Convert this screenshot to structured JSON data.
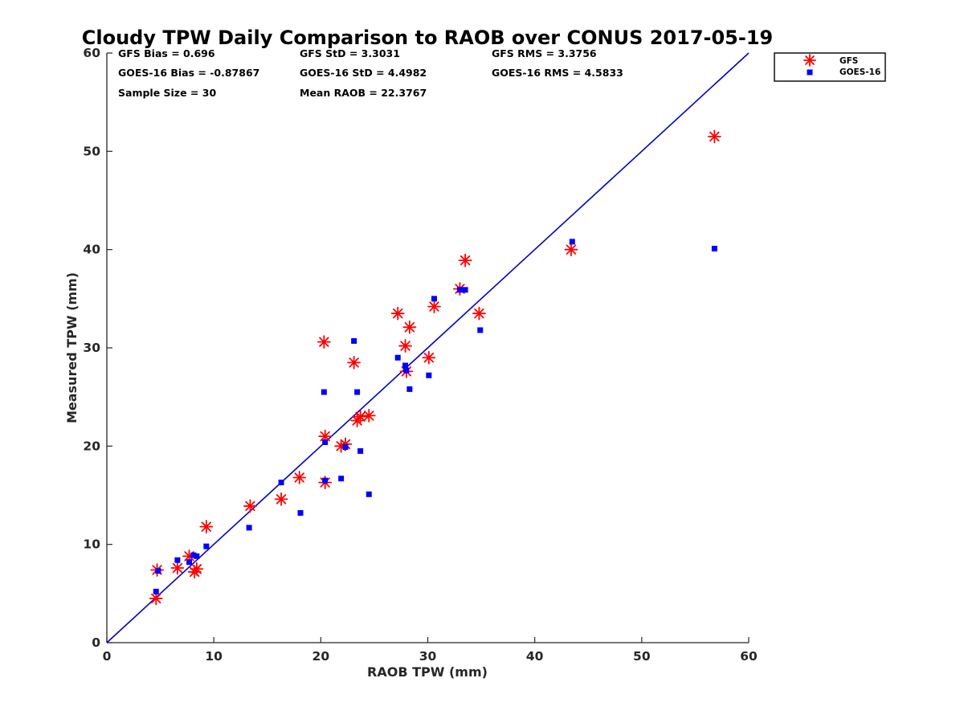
{
  "chart_data": {
    "type": "scatter",
    "title": "Cloudy TPW Daily Comparison to RAOB over CONUS 2017-05-19",
    "xlabel": "RAOB TPW (mm)",
    "ylabel": "Measured TPW (mm)",
    "xlim": [
      0,
      60
    ],
    "ylim": [
      0,
      60
    ],
    "x_ticks": [
      "0",
      "10",
      "20",
      "30",
      "40",
      "50",
      "60"
    ],
    "y_ticks": [
      "0",
      "10",
      "20",
      "30",
      "40",
      "50",
      "60"
    ],
    "grid": false,
    "legend_position": "top-right outside",
    "reference_line": {
      "from": [
        0,
        0
      ],
      "to": [
        60,
        60
      ],
      "color": "#0000cc"
    },
    "stats": {
      "gfs_bias": "GFS Bias = 0.696",
      "gfs_std": "GFS StD = 3.3031",
      "gfs_rms": "GFS RMS = 3.3756",
      "goes_bias": "GOES-16 Bias = -0.87867",
      "goes_std": "GOES-16 StD = 4.4982",
      "goes_rms": "GOES-16 RMS = 4.5833",
      "sample_size": "Sample Size = 30",
      "mean_raob": "Mean RAOB = 22.3767"
    },
    "series": [
      {
        "name": "GFS",
        "marker": "asterisk",
        "color": "#ff0000",
        "points": [
          [
            4.6,
            4.5
          ],
          [
            4.7,
            7.4
          ],
          [
            6.6,
            7.6
          ],
          [
            7.7,
            8.8
          ],
          [
            8.2,
            7.2
          ],
          [
            8.4,
            7.5
          ],
          [
            9.3,
            11.8
          ],
          [
            13.4,
            13.9
          ],
          [
            16.3,
            14.6
          ],
          [
            18.0,
            16.8
          ],
          [
            20.3,
            30.6
          ],
          [
            20.4,
            21.0
          ],
          [
            20.4,
            16.3
          ],
          [
            21.9,
            20.0
          ],
          [
            22.3,
            20.2
          ],
          [
            23.1,
            28.5
          ],
          [
            23.4,
            22.6
          ],
          [
            23.7,
            23.0
          ],
          [
            24.5,
            23.1
          ],
          [
            27.2,
            33.5
          ],
          [
            27.9,
            30.2
          ],
          [
            28.0,
            27.6
          ],
          [
            28.3,
            32.1
          ],
          [
            30.1,
            29.0
          ],
          [
            30.6,
            34.2
          ],
          [
            33.0,
            36.0
          ],
          [
            33.5,
            38.9
          ],
          [
            34.8,
            33.5
          ],
          [
            43.4,
            40.0
          ],
          [
            56.8,
            51.5
          ]
        ]
      },
      {
        "name": "GOES-16",
        "marker": "square",
        "color": "#0000ff",
        "points": [
          [
            4.6,
            5.2
          ],
          [
            4.8,
            7.3
          ],
          [
            6.6,
            8.4
          ],
          [
            7.7,
            8.2
          ],
          [
            8.1,
            8.9
          ],
          [
            8.4,
            8.8
          ],
          [
            9.3,
            9.8
          ],
          [
            13.3,
            11.7
          ],
          [
            16.3,
            16.3
          ],
          [
            18.1,
            13.2
          ],
          [
            20.3,
            25.5
          ],
          [
            20.4,
            20.4
          ],
          [
            20.4,
            16.5
          ],
          [
            21.9,
            16.7
          ],
          [
            22.3,
            19.9
          ],
          [
            23.1,
            30.7
          ],
          [
            23.4,
            25.5
          ],
          [
            23.7,
            19.5
          ],
          [
            24.5,
            15.1
          ],
          [
            27.2,
            29.0
          ],
          [
            27.9,
            28.2
          ],
          [
            28.0,
            27.7
          ],
          [
            28.3,
            25.8
          ],
          [
            30.1,
            27.2
          ],
          [
            30.6,
            35.0
          ],
          [
            33.0,
            35.9
          ],
          [
            33.5,
            35.9
          ],
          [
            34.9,
            31.8
          ],
          [
            43.5,
            40.8
          ],
          [
            56.8,
            40.1
          ]
        ]
      }
    ]
  }
}
